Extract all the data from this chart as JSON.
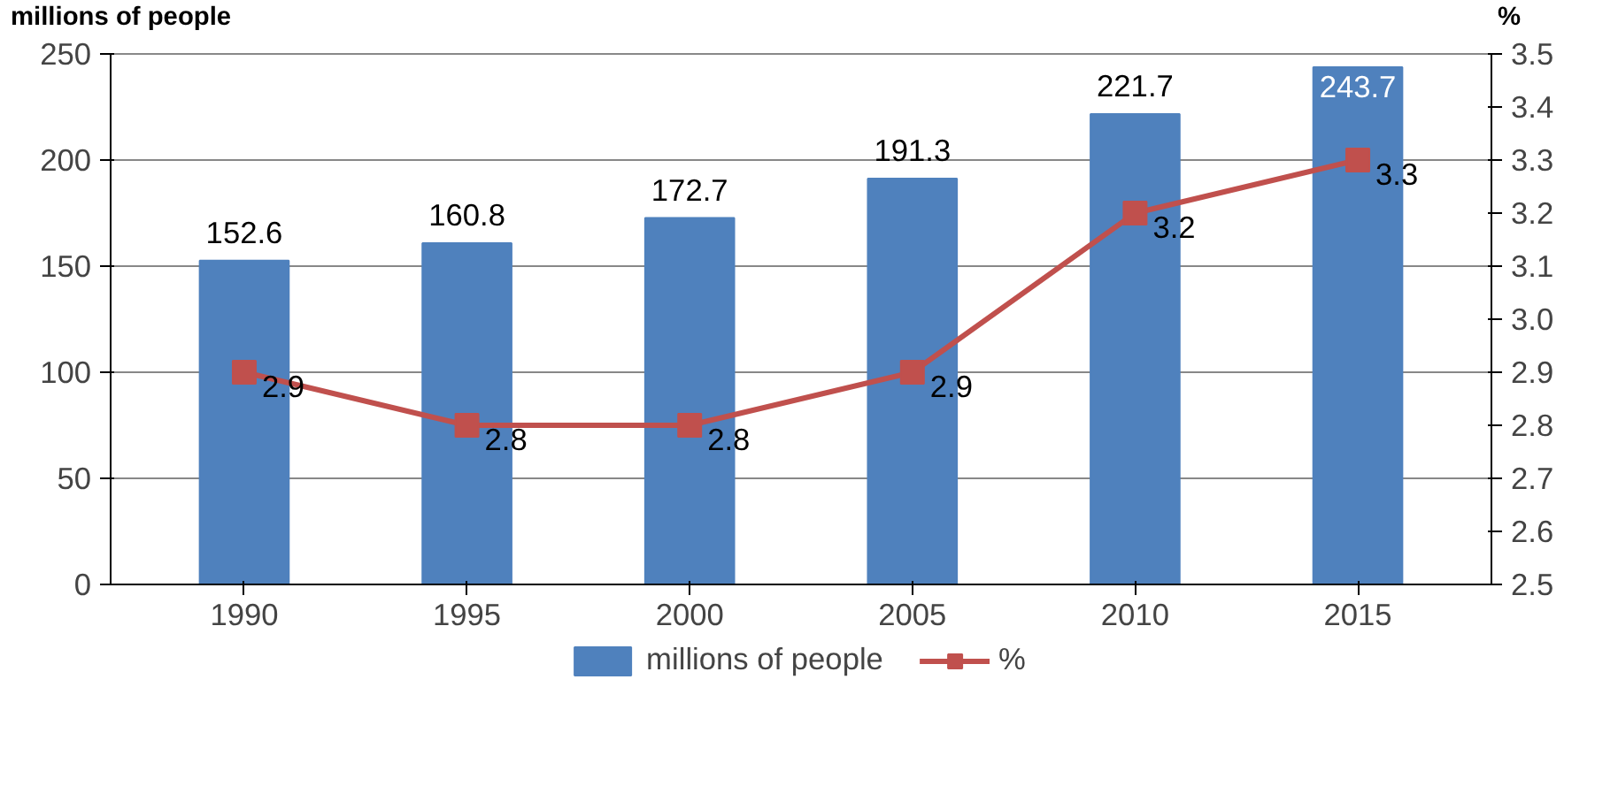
{
  "chart_data": {
    "type": "bar",
    "categories": [
      "1990",
      "1995",
      "2000",
      "2005",
      "2010",
      "2015"
    ],
    "ylabel": "millions of people",
    "y2label": "%",
    "series": [
      {
        "name": "millions of people",
        "color": "#4f81bd",
        "values": [
          152.6,
          160.8,
          172.7,
          191.3,
          221.7,
          243.7
        ]
      },
      {
        "name": "%",
        "type": "line",
        "axis": "y2",
        "color": "#c0504d",
        "values": [
          2.9,
          2.8,
          2.8,
          2.9,
          3.2,
          3.3
        ]
      }
    ],
    "ylim": [
      0,
      250
    ],
    "yticks": [
      0,
      50,
      100,
      150,
      200,
      250
    ],
    "y2lim": [
      2.5,
      3.5
    ],
    "y2ticks": [
      2.5,
      2.6,
      2.7,
      2.8,
      2.9,
      {
        "value": 3,
        "label": "3.0"
      },
      3.1,
      3.2,
      3.3,
      3.4,
      3.5
    ],
    "data_labels": true,
    "grid": "y",
    "legend": "bottom",
    "marker": "square",
    "line_style": "solid"
  }
}
